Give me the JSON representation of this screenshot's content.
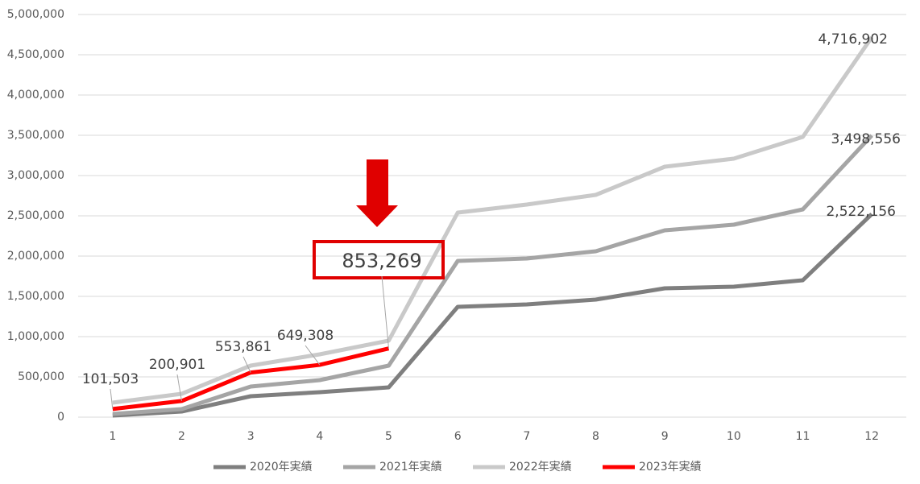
{
  "chart_data": {
    "type": "line",
    "categories": [
      1,
      2,
      3,
      4,
      5,
      6,
      7,
      8,
      9,
      10,
      11,
      12
    ],
    "ylim": [
      0,
      5000000
    ],
    "yticks": [
      0,
      {
        "value": 500000,
        "label": "500,000"
      },
      {
        "value": 1000000,
        "label": "1,000,000"
      },
      {
        "value": 1500000,
        "label": "1,500,000"
      },
      {
        "value": 2000000,
        "label": "2,000,000"
      },
      {
        "value": 2500000,
        "label": "2,500,000"
      },
      {
        "value": 3000000,
        "label": "3,000,000"
      },
      {
        "value": 3500000,
        "label": "3,500,000"
      },
      {
        "value": 4000000,
        "label": "4,000,000"
      },
      {
        "value": 4500000,
        "label": "4,500,000"
      },
      {
        "value": 5000000,
        "label": "5,000,000"
      }
    ],
    "grid": true,
    "legend": "bottom",
    "series": [
      {
        "name": "2020年実績",
        "color": "#7f7f7f",
        "values": [
          20000,
          70000,
          260000,
          310000,
          370000,
          1370000,
          1400000,
          1460000,
          1600000,
          1620000,
          1700000,
          2522156
        ],
        "value_labels": [
          null,
          null,
          null,
          null,
          null,
          null,
          null,
          null,
          null,
          null,
          null,
          "2,522,156"
        ]
      },
      {
        "name": "2021年実績",
        "color": "#a5a5a5",
        "values": [
          40000,
          100000,
          380000,
          460000,
          640000,
          1940000,
          1970000,
          2060000,
          2320000,
          2390000,
          2580000,
          3498556
        ],
        "value_labels": [
          null,
          null,
          null,
          null,
          null,
          null,
          null,
          null,
          null,
          null,
          null,
          "3,498,556"
        ]
      },
      {
        "name": "2022年実績",
        "color": "#c9c9c9",
        "values": [
          180000,
          290000,
          640000,
          780000,
          950000,
          2540000,
          2640000,
          2760000,
          3110000,
          3210000,
          3480000,
          4716902
        ],
        "value_labels": [
          null,
          null,
          null,
          null,
          null,
          null,
          null,
          null,
          null,
          null,
          null,
          "4,716,902"
        ]
      },
      {
        "name": "2023年実績",
        "color": "#ff0000",
        "values": [
          101503,
          200901,
          553861,
          649308,
          853269,
          null,
          null,
          null,
          null,
          null,
          null,
          null
        ],
        "value_labels": [
          "101,503",
          "200,901",
          "553,861",
          "649,308",
          "853,269",
          null,
          null,
          null,
          null,
          null,
          null,
          null
        ]
      }
    ]
  }
}
